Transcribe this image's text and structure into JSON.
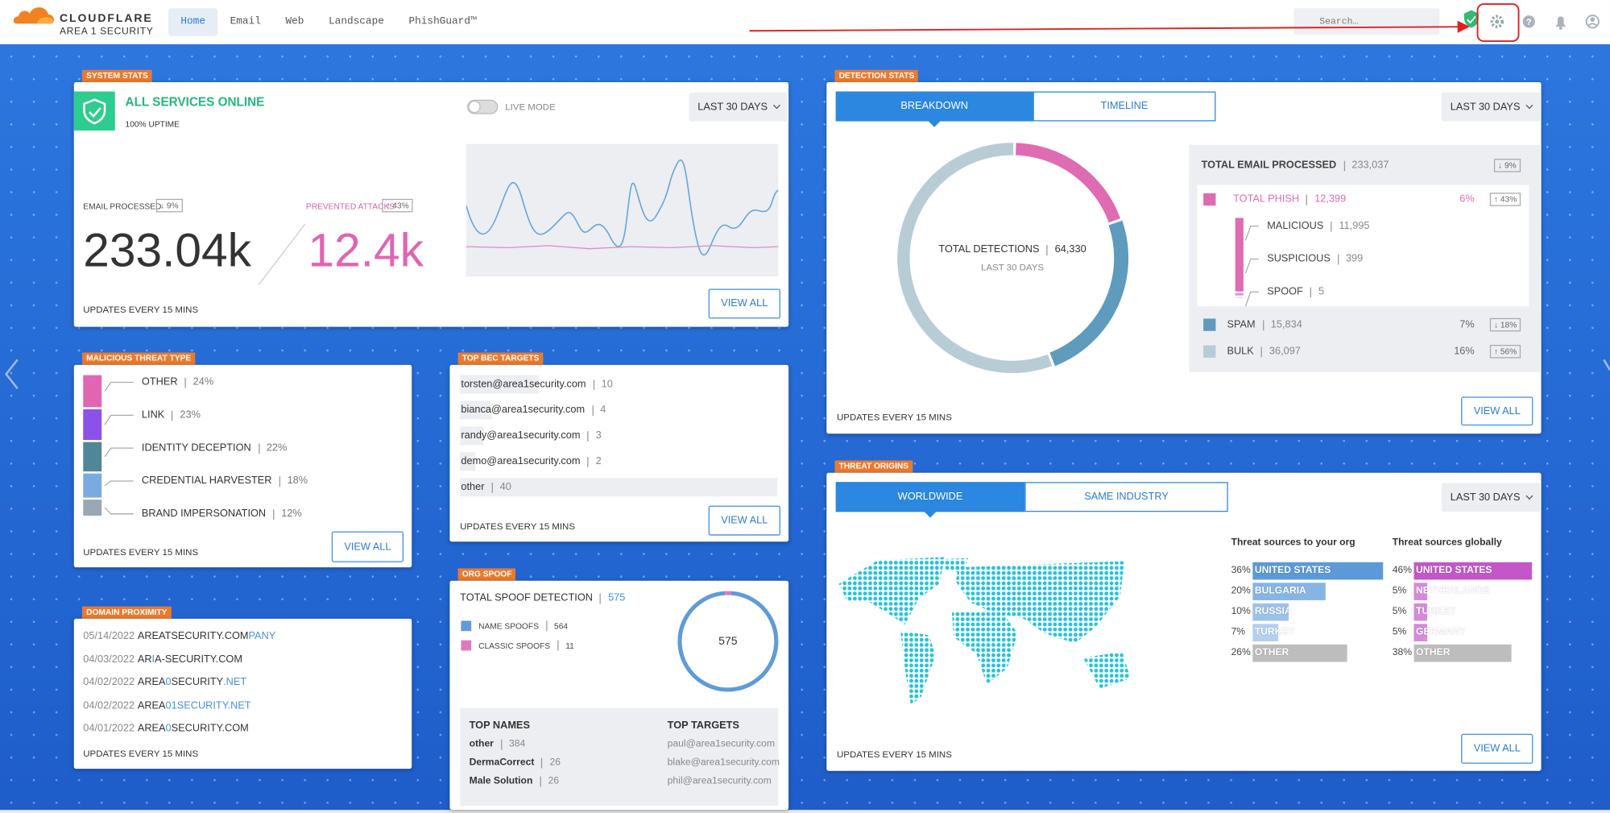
{
  "nav": {
    "brand": "CLOUDFLARE",
    "product": "AREA 1 SECURITY",
    "tabs": [
      "Home",
      "Email",
      "Web",
      "Landscape",
      "PhishGuard™"
    ],
    "active_tab": 0,
    "search_placeholder": "Search…"
  },
  "system_stats": {
    "tag": "SYSTEM STATS",
    "status": "ALL SERVICES ONLINE",
    "uptime": "100% UPTIME",
    "live_mode": "LIVE MODE",
    "range": "LAST 30 DAYS",
    "email_processed": {
      "label": "EMAIL PROCESSED",
      "change": "↓ 9%",
      "value": "233.04k"
    },
    "prevented_attacks": {
      "label": "PREVENTED ATTACKS",
      "change": "↑ 43%",
      "value": "12.4k"
    },
    "footer": "UPDATES EVERY 15 MINS",
    "button": "VIEW ALL"
  },
  "malicious_threat_type": {
    "tag": "MALICIOUS THREAT TYPE",
    "items": [
      {
        "label": "OTHER",
        "share": {
          "value": 24,
          "label": "24%"
        },
        "color": "#e066b3"
      },
      {
        "label": "LINK",
        "share": {
          "value": 23,
          "label": "23%"
        },
        "color": "#8a52e8"
      },
      {
        "label": "IDENTITY DECEPTION",
        "share": {
          "value": 22,
          "label": "22%"
        },
        "color": "#4f8799"
      },
      {
        "label": "CREDENTIAL HARVESTER",
        "share": {
          "value": 18,
          "label": "18%"
        },
        "color": "#79abe0"
      },
      {
        "label": "BRAND IMPERSONATION",
        "share": {
          "value": 12,
          "label": "12%"
        },
        "color": "#9aa7b5"
      }
    ],
    "footer": "UPDATES EVERY 15 MINS",
    "button": "VIEW ALL"
  },
  "top_bec_targets": {
    "tag": "TOP BEC TARGETS",
    "items": [
      {
        "email": "torsten@area1security.com",
        "count": 10
      },
      {
        "email": "bianca@area1security.com",
        "count": 4
      },
      {
        "email": "randy@area1security.com",
        "count": 3
      },
      {
        "email": "demo@area1security.com",
        "count": 2
      },
      {
        "email": "other",
        "count": 40
      }
    ],
    "footer": "UPDATES EVERY 15 MINS",
    "button": "VIEW ALL"
  },
  "domain_proximity": {
    "tag": "DOMAIN PROXIMITY",
    "rows": [
      {
        "date": "05/14/2022",
        "domain": [
          {
            "text": "AREATSECURITY.COM",
            "highlight": false
          },
          {
            "text": "PANY",
            "highlight": true
          }
        ]
      },
      {
        "date": "04/03/2022",
        "domain": [
          {
            "text": "AR",
            "highlight": false
          },
          {
            "text": "I",
            "highlight": true
          },
          {
            "text": "A-SECURITY.COM",
            "highlight": false
          }
        ]
      },
      {
        "date": "04/02/2022",
        "domain": [
          {
            "text": "AREA",
            "highlight": false
          },
          {
            "text": "0",
            "highlight": true
          },
          {
            "text": "SECURITY",
            "highlight": false
          },
          {
            "text": ".NET",
            "highlight": true
          }
        ]
      },
      {
        "date": "04/02/2022",
        "domain": [
          {
            "text": "AREA",
            "highlight": false
          },
          {
            "text": "01SECURITY.NET",
            "highlight": true
          }
        ]
      },
      {
        "date": "04/01/2022",
        "domain": [
          {
            "text": "AREA",
            "highlight": false
          },
          {
            "text": "0",
            "highlight": true
          },
          {
            "text": "SECURITY.COM",
            "highlight": false
          }
        ]
      }
    ],
    "footer": "UPDATES EVERY 15 MINS"
  },
  "org_spoof": {
    "tag": "ORG SPOOF",
    "title": "TOTAL SPOOF DETECTION",
    "total": 575,
    "types": [
      {
        "label": "NAME SPOOFS",
        "count": 564,
        "color": "#5f9bd8"
      },
      {
        "label": "CLASSIC SPOOFS",
        "count": 11,
        "color": "#e07ac0"
      }
    ],
    "top_names": {
      "title": "TOP NAMES",
      "items": [
        {
          "name": "other",
          "count": 384
        },
        {
          "name": "DermaCorrect",
          "count": 26
        },
        {
          "name": "Male Solution",
          "count": 26
        }
      ]
    },
    "top_targets": {
      "title": "TOP TARGETS",
      "items": [
        "paul@area1security.com",
        "blake@area1security.com",
        "phil@area1security.com"
      ]
    }
  },
  "detection_stats": {
    "tag": "DETECTION STATS",
    "tabs": [
      "BREAKDOWN",
      "TIMELINE"
    ],
    "active_tab": 0,
    "range": "LAST 30 DAYS",
    "total_label": "TOTAL DETECTIONS",
    "total": "64,330",
    "period": "LAST 30 DAYS",
    "email": {
      "label": "TOTAL EMAIL PROCESSED",
      "count": "233,037",
      "change": "↓ 9%"
    },
    "categories": [
      {
        "label": "TOTAL PHISH",
        "count": {
          "value": 12399,
          "label": "12,399"
        },
        "share": "6%",
        "change": "↑ 43%",
        "color": "#df6bb2"
      },
      {
        "label": "SPAM",
        "count": {
          "value": 15834,
          "label": "15,834"
        },
        "share": "7%",
        "change": "↓ 18%",
        "color": "#5e9bbd"
      },
      {
        "label": "BULK",
        "count": {
          "value": 36097,
          "label": "36,097"
        },
        "share": "16%",
        "change": "↑ 56%",
        "color": "#b8ccd6"
      }
    ],
    "phish_breakdown": [
      {
        "label": "MALICIOUS",
        "count": {
          "value": 11995,
          "label": "11,995"
        }
      },
      {
        "label": "SUSPICIOUS",
        "count": 399
      },
      {
        "label": "SPOOF",
        "count": 5
      }
    ],
    "footer": "UPDATES EVERY 15 MINS",
    "button": "VIEW ALL"
  },
  "threat_origins": {
    "tag": "THREAT ORIGINS",
    "tabs": [
      "WORLDWIDE",
      "SAME INDUSTRY"
    ],
    "active_tab": 0,
    "range": "LAST 30 DAYS",
    "org": {
      "title": "Threat sources to your org",
      "items": [
        {
          "share": {
            "value": 36,
            "label": "36%"
          },
          "country": "UNITED STATES",
          "color": "#5b9ad6"
        },
        {
          "share": {
            "value": 20,
            "label": "20%"
          },
          "country": "BULGARIA",
          "color": "#86b5e4"
        },
        {
          "share": {
            "value": 10,
            "label": "10%"
          },
          "country": "RUSSIA",
          "color": "#9cc2ea"
        },
        {
          "share": {
            "value": 7,
            "label": "7%"
          },
          "country": "TURKEY",
          "color": "#b3d0ef"
        },
        {
          "share": {
            "value": 26,
            "label": "26%"
          },
          "country": "OTHER",
          "color": "#bdbdbd"
        }
      ]
    },
    "global": {
      "title": "Threat sources globally",
      "items": [
        {
          "share": {
            "value": 46,
            "label": "46%"
          },
          "country": "UNITED STATES",
          "color": "#c357c8"
        },
        {
          "share": {
            "value": 5,
            "label": "5%"
          },
          "country": "NETHERLANDS",
          "color": "#d68ad9"
        },
        {
          "share": {
            "value": 5,
            "label": "5%"
          },
          "country": "TURKEY",
          "color": "#d68ad9"
        },
        {
          "share": {
            "value": 5,
            "label": "5%"
          },
          "country": "GERMANY",
          "color": "#d68ad9"
        },
        {
          "share": {
            "value": 38,
            "label": "38%"
          },
          "country": "OTHER",
          "color": "#bdbdbd"
        }
      ]
    },
    "footer": "UPDATES EVERY 15 MINS",
    "button": "VIEW ALL"
  }
}
